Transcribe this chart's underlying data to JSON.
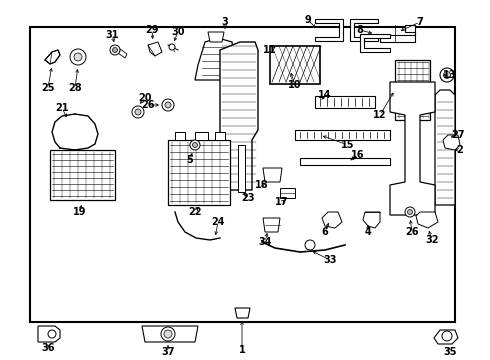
{
  "bg_color": "#ffffff",
  "border_color": "#000000",
  "line_color": "#000000",
  "fig_width": 4.9,
  "fig_height": 3.6,
  "dpi": 100
}
